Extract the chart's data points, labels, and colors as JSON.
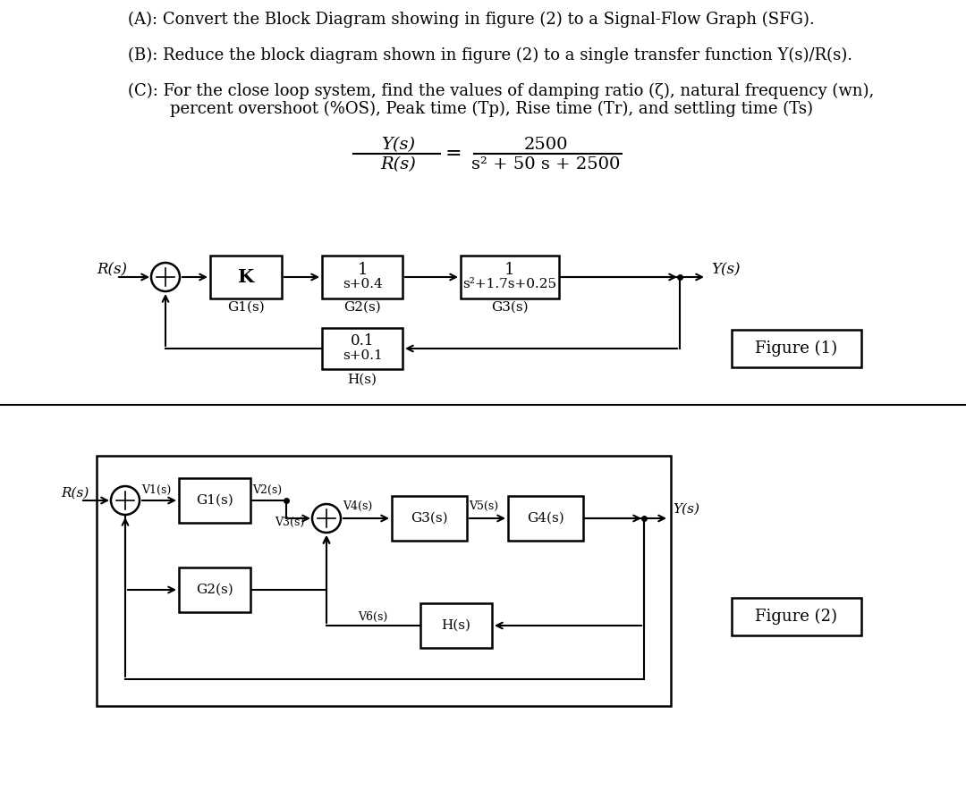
{
  "bg_color": "#ffffff",
  "text_color": "#000000",
  "title_A": "(A): Convert the Block Diagram showing in figure (2) to a Signal-Flow Graph (SFG).",
  "title_B": "(B): Reduce the block diagram shown in figure (2) to a single transfer function Y(s)/R(s).",
  "title_C": "(C): For the close loop system, find the values of damping ratio (ζ), natural frequency (wn),",
  "title_C2": "percent overshoot (%OS), Peak time (Tp), Rise time (Tr), and settling time (Ts)",
  "tf_numerator": "2500",
  "tf_denominator": "s² + 50 s + 2500",
  "tf_lhs_num": "Y(s)",
  "tf_lhs_den": "R(s)",
  "fig1_label": "Figure (1)",
  "fig2_label": "Figure (2)",
  "fig1_Rs": "R(s)",
  "fig1_Ys": "Y(s)",
  "fig1_G1s": "G1(s)",
  "fig1_G2s": "G2(s)",
  "fig1_G3s": "G3(s)",
  "fig1_Hs": "H(s)",
  "fig1_K_num": "K",
  "fig1_G2_num": "1",
  "fig1_G2_den": "s+0.4",
  "fig1_G3_num": "1",
  "fig1_G3_den": "s²+1.7s+0.25",
  "fig1_H_num": "0.1",
  "fig1_H_den": "s+0.1",
  "fig2_Rs": "R(s)",
  "fig2_Ys": "Y(s)",
  "fig2_V1s": "V1(s)",
  "fig2_V2s": "V2(s)",
  "fig2_V3s": "V3(s)",
  "fig2_V4s": "V4(s)",
  "fig2_V5s": "V5(s)",
  "fig2_V6s": "V6(s)",
  "fig2_G1s": "G1(s)",
  "fig2_G2s": "G2(s)",
  "fig2_G3s": "G3(s)",
  "fig2_G4s": "G4(s)",
  "fig2_Hs": "H(s)"
}
